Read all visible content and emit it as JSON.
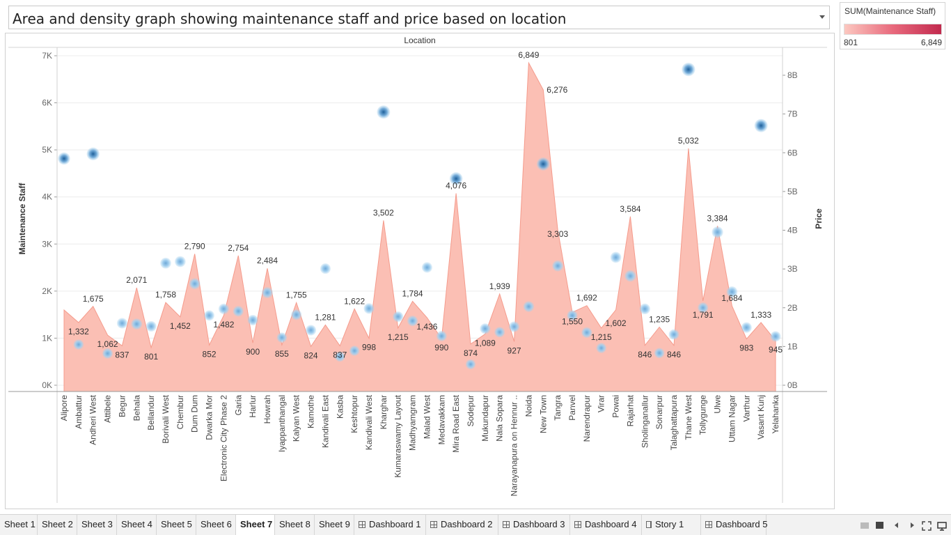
{
  "title": "Area and density graph showing maintenance staff and price based on location",
  "legend": {
    "title": "SUM(Maintenance Staff)",
    "min_label": "801",
    "max_label": "6,849"
  },
  "colors": {
    "area_fill": "#fbbfb4",
    "area_stroke": "#f59b8c",
    "density_light": "#a9d3ee",
    "density_dark": "#1d5f9a",
    "grid": "#ececec"
  },
  "chart_data": {
    "type": "area",
    "title": "Area and density graph showing maintenance staff and price based on location",
    "header": "Location",
    "xlabel": "",
    "ylabel_left": "Maintenance Staff",
    "ylabel_right": "Price",
    "ylim_left": [
      0,
      7000
    ],
    "ylim_right": [
      0,
      8500000000
    ],
    "left_ticks": [
      {
        "v": 0,
        "t": "0K"
      },
      {
        "v": 1000,
        "t": "1K"
      },
      {
        "v": 2000,
        "t": "2K"
      },
      {
        "v": 3000,
        "t": "3K"
      },
      {
        "v": 4000,
        "t": "4K"
      },
      {
        "v": 5000,
        "t": "5K"
      },
      {
        "v": 6000,
        "t": "6K"
      },
      {
        "v": 7000,
        "t": "7K"
      }
    ],
    "right_ticks": [
      {
        "v": 0,
        "t": "0B"
      },
      {
        "v": 1000000000,
        "t": "1B"
      },
      {
        "v": 2000000000,
        "t": "2B"
      },
      {
        "v": 3000000000,
        "t": "3B"
      },
      {
        "v": 4000000000,
        "t": "4B"
      },
      {
        "v": 5000000000,
        "t": "5B"
      },
      {
        "v": 6000000000,
        "t": "6B"
      },
      {
        "v": 7000000000,
        "t": "7B"
      },
      {
        "v": 8000000000,
        "t": "8B"
      }
    ],
    "categories": [
      "Alipore",
      "Ambattur",
      "Andheri West",
      "Attibele",
      "Begur",
      "Behala",
      "Bellandur",
      "Borivali West",
      "Chembur",
      "Dum Dum",
      "Dwarka Mor",
      "Electronic City Phase 2",
      "Garia",
      "Harlur",
      "Howrah",
      "Iyappanthangal",
      "Kalyan West",
      "Kamothe",
      "Kandivali East",
      "Kasba",
      "Keshtopur",
      "Kandivali West",
      "Kharghar",
      "Kumaraswamy Layout",
      "Madhyamgram",
      "Malad West",
      "Medavakkam",
      "Mira Road East",
      "Sodepur",
      "Mukundapur",
      "Nala Sopara",
      "Narayanapura on Hennur ..",
      "Noida",
      "New Town",
      "Tangra",
      "Panvel",
      "Narendrapur",
      "Virar",
      "Powai",
      "Rajarhat",
      "Sholinganallur",
      "Sonarpur",
      "Talaghattapura",
      "Thane West",
      "Tollygunge",
      "Ulwe",
      "Uttam Nagar",
      "Varthur",
      "Vasant Kunj",
      "Yelahanka"
    ],
    "series": [
      {
        "name": "Maintenance Staff",
        "values": [
          1598,
          1332,
          1675,
          1062,
          837,
          2071,
          801,
          1758,
          1452,
          2790,
          852,
          1482,
          2754,
          900,
          2484,
          855,
          1755,
          824,
          1281,
          837,
          1622,
          998,
          3502,
          1215,
          1784,
          1436,
          990,
          4076,
          874,
          1089,
          1939,
          927,
          6849,
          6276,
          3303,
          1550,
          1692,
          1215,
          1602,
          3584,
          846,
          1235,
          846,
          5032,
          1791,
          3384,
          1684,
          983,
          1333,
          945
        ],
        "labels": [
          "",
          "1,332",
          "1,675",
          "1,062",
          "837",
          "2,071",
          "801",
          "1,758",
          "1,452",
          "2,790",
          "852",
          "1,482",
          "2,754",
          "900",
          "2,484",
          "855",
          "1,755",
          "824",
          "1,281",
          "837",
          "1,622",
          "998",
          "3,502",
          "1,215",
          "1,784",
          "1,436",
          "990",
          "4,076",
          "874",
          "1,089",
          "1,939",
          "927",
          "6,849",
          "6,276",
          "3,303",
          "1,550",
          "1,692",
          "1,215",
          "1,602",
          "3,584",
          "846",
          "1,235",
          "846",
          "5,032",
          "1,791",
          "3,384",
          "1,684",
          "983",
          "1,333",
          "945"
        ]
      },
      {
        "name": "Price",
        "values": [
          5850000000,
          1050000000,
          5970000000,
          820000000,
          1600000000,
          1580000000,
          1520000000,
          3150000000,
          3190000000,
          2620000000,
          1800000000,
          1970000000,
          1910000000,
          1680000000,
          2390000000,
          1230000000,
          1820000000,
          1420000000,
          3010000000,
          740000000,
          890000000,
          1980000000,
          7050000000,
          1770000000,
          1660000000,
          3040000000,
          1270000000,
          5330000000,
          540000000,
          1460000000,
          1370000000,
          1510000000,
          2030000000,
          5710000000,
          3080000000,
          1800000000,
          1360000000,
          960000000,
          3300000000,
          2820000000,
          1970000000,
          830000000,
          1310000000,
          8150000000,
          2000000000,
          3950000000,
          2410000000,
          1490000000,
          6700000000,
          1260000000
        ],
        "density": [
          0.6,
          0.1,
          0.75,
          0.15,
          0.2,
          0.3,
          0.2,
          0.3,
          0.3,
          0.3,
          0.15,
          0.2,
          0.2,
          0.2,
          0.3,
          0.1,
          0.2,
          0.2,
          0.2,
          0.1,
          0.1,
          0.2,
          0.85,
          0.2,
          0.2,
          0.2,
          0.15,
          0.8,
          0.05,
          0.2,
          0.15,
          0.2,
          0.25,
          0.8,
          0.3,
          0.2,
          0.2,
          0.1,
          0.3,
          0.4,
          0.25,
          0.1,
          0.15,
          0.9,
          0.2,
          0.4,
          0.3,
          0.2,
          0.85,
          0.2
        ]
      }
    ],
    "grid": true
  },
  "tabs": [
    {
      "label": "Sheet 1",
      "kind": "sheet"
    },
    {
      "label": "Sheet 2",
      "kind": "sheet"
    },
    {
      "label": "Sheet 3",
      "kind": "sheet"
    },
    {
      "label": "Sheet 4",
      "kind": "sheet"
    },
    {
      "label": "Sheet 5",
      "kind": "sheet"
    },
    {
      "label": "Sheet 6",
      "kind": "sheet"
    },
    {
      "label": "Sheet 7",
      "kind": "sheet",
      "active": true
    },
    {
      "label": "Sheet 8",
      "kind": "sheet"
    },
    {
      "label": "Sheet 9",
      "kind": "sheet"
    },
    {
      "label": "Dashboard 1",
      "kind": "dashboard"
    },
    {
      "label": "Dashboard 2",
      "kind": "dashboard"
    },
    {
      "label": "Dashboard 3",
      "kind": "dashboard"
    },
    {
      "label": "Dashboard 4",
      "kind": "dashboard"
    },
    {
      "label": "Story 1",
      "kind": "story"
    },
    {
      "label": "Dashboard 5",
      "kind": "dashboard"
    }
  ]
}
